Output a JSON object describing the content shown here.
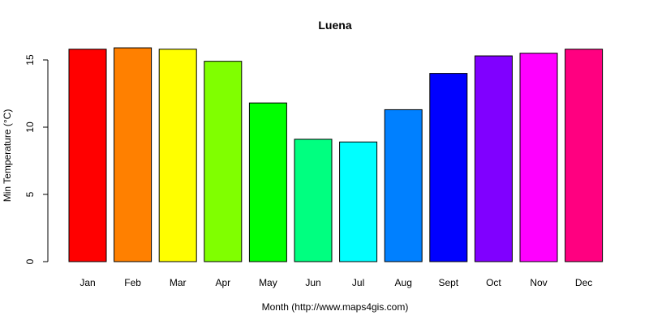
{
  "chart_data": {
    "type": "bar",
    "title": "Luena",
    "xlabel": "Month (http://www.maps4gis.com)",
    "ylabel": "Min Temperature (°C)",
    "ylim": [
      0,
      15
    ],
    "yticks": [
      "0",
      "5",
      "10",
      "15"
    ],
    "categories": [
      "Jan",
      "Feb",
      "Mar",
      "Apr",
      "May",
      "Jun",
      "Jul",
      "Aug",
      "Sept",
      "Oct",
      "Nov",
      "Dec"
    ],
    "values": [
      15.8,
      15.9,
      15.8,
      14.9,
      11.8,
      9.1,
      8.9,
      11.3,
      14.0,
      15.3,
      15.5,
      15.8
    ],
    "colors": [
      "#FF0000",
      "#FF8000",
      "#FFFF00",
      "#80FF00",
      "#00FF00",
      "#00FF80",
      "#00FFFF",
      "#0080FF",
      "#0000FF",
      "#8000FF",
      "#FF00FF",
      "#FF0080"
    ],
    "grid": false,
    "legend": "none"
  }
}
